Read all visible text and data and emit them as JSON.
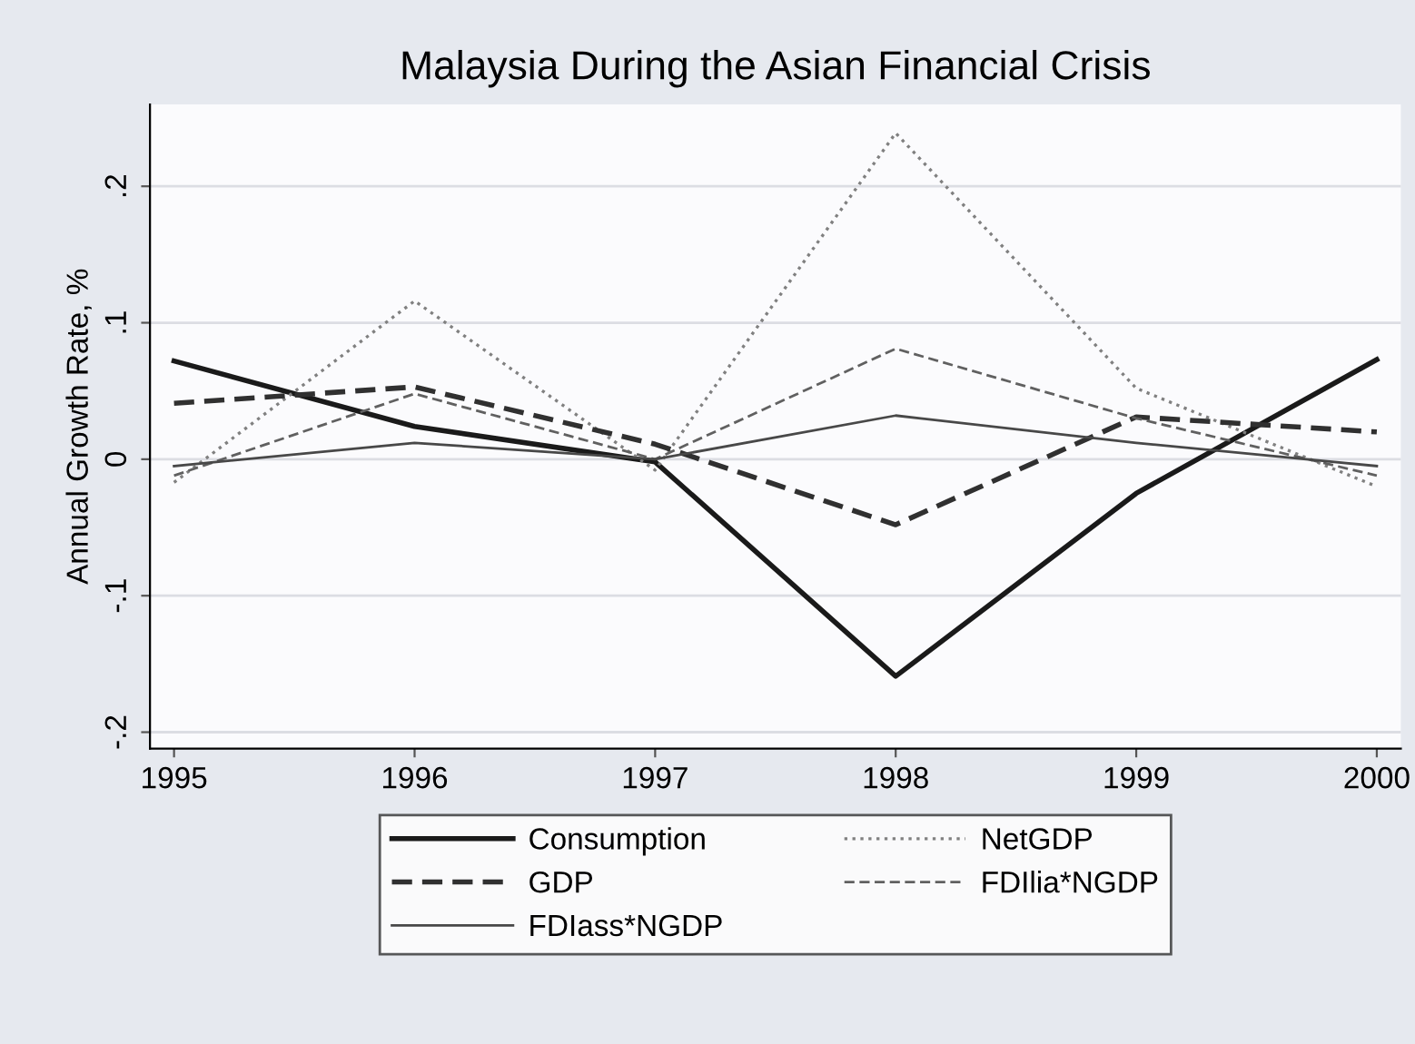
{
  "chart_data": {
    "type": "line",
    "title": "Malaysia During the Asian Financial Crisis",
    "ylabel": "Annual Growth Rate, %",
    "x": [
      1995,
      1996,
      1997,
      1998,
      1999,
      2000
    ],
    "xlim": [
      1994.9,
      2000.1
    ],
    "xticks": [
      1995,
      1996,
      1997,
      1998,
      1999,
      2000
    ],
    "ylim": [
      -0.212,
      0.26
    ],
    "yticks": [
      {
        "value": -0.2,
        "label": "-.2"
      },
      {
        "value": -0.1,
        "label": "-.1"
      },
      {
        "value": 0,
        "label": "0"
      },
      {
        "value": 0.1,
        "label": ".1"
      },
      {
        "value": 0.2,
        "label": ".2"
      }
    ],
    "grid": "y",
    "legend": "bottom",
    "marker": "none",
    "series": [
      {
        "name": "Consumption",
        "color": "#1a1a1a",
        "line_style": "solid",
        "values": [
          0.072,
          0.024,
          -0.002,
          -0.159,
          -0.025,
          0.073
        ]
      },
      {
        "name": "NetGDP",
        "color": "#808080",
        "line_style": "dotted",
        "values": [
          -0.017,
          0.116,
          -0.008,
          0.239,
          0.052,
          -0.02
        ]
      },
      {
        "name": "GDP",
        "color": "#303030",
        "line_style": "dashed",
        "values": [
          0.041,
          0.053,
          0.011,
          -0.048,
          0.031,
          0.02
        ]
      },
      {
        "name": "FDIlia*NGDP",
        "color": "#606060",
        "line_style": "dashed",
        "values": [
          -0.012,
          0.048,
          0.0,
          0.081,
          0.03,
          -0.012
        ]
      },
      {
        "name": "FDIass*NGDP",
        "color": "#484848",
        "line_style": "solid",
        "values": [
          -0.005,
          0.012,
          0.0,
          0.032,
          0.012,
          -0.005
        ]
      }
    ]
  }
}
